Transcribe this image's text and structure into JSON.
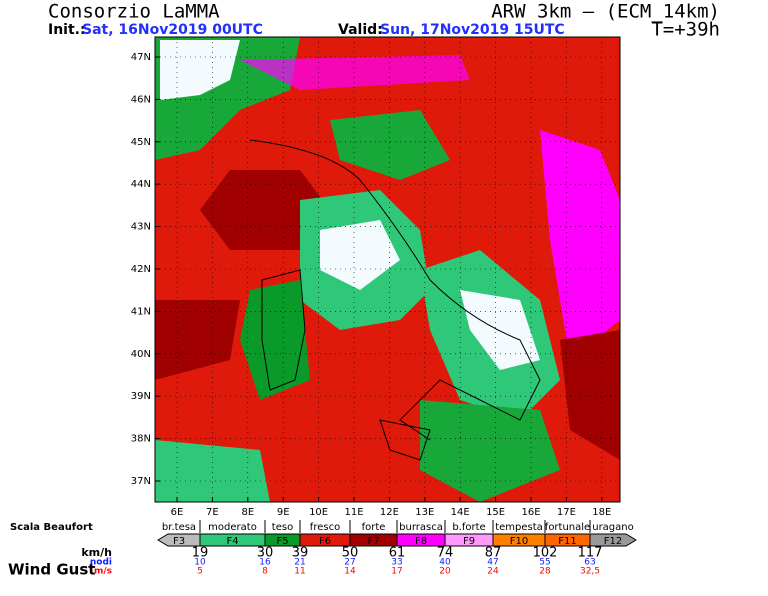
{
  "header": {
    "org": "Consorzio LaMMA",
    "model": "ARW 3km – (ECM_14km)",
    "init_label": "Init.:",
    "init": "Sat, 16Nov2019 00UTC",
    "valid_label": "Valid:",
    "valid": "Sun, 17Nov2019 15UTC",
    "step": "T=+39h"
  },
  "map": {
    "lat_labels": [
      "47N",
      "46N",
      "45N",
      "44N",
      "43N",
      "42N",
      "41N",
      "40N",
      "39N",
      "38N",
      "37N"
    ],
    "lon_labels": [
      "6E",
      "7E",
      "8E",
      "9E",
      "10E",
      "11E",
      "12E",
      "13E",
      "14E",
      "15E",
      "16E",
      "17E",
      "18E"
    ]
  },
  "legend": {
    "scale_title": "Scala Beaufort",
    "title": "Wind Gust",
    "units": [
      "km/h",
      "nodi",
      "m/s"
    ],
    "names": [
      "br.tesa",
      "moderato",
      "teso",
      "fresco",
      "forte",
      "burrasca",
      "b.forte",
      "tempesta",
      "fortunale",
      "uragano"
    ],
    "classes": [
      "F3",
      "F4",
      "F5",
      "F6",
      "F7",
      "F8",
      "F9",
      "F10",
      "F11",
      "F12"
    ],
    "kmh": [
      19,
      30,
      39,
      50,
      61,
      74,
      87,
      102,
      117
    ],
    "knots": [
      10,
      16,
      21,
      27,
      33,
      40,
      47,
      55,
      63
    ],
    "ms": [
      5,
      8,
      11,
      14,
      17,
      20,
      24,
      28,
      "32,5"
    ]
  }
}
